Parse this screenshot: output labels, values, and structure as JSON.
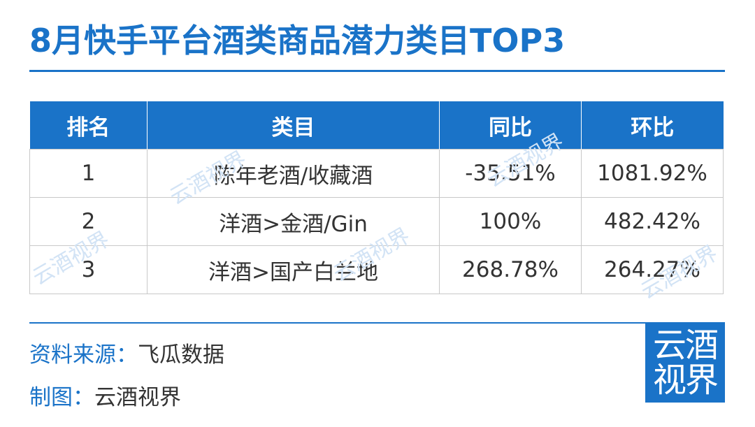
{
  "title": "8月快手平台酒类商品潜力类目TOP3",
  "table": {
    "headers": [
      "排名",
      "类目",
      "同比",
      "环比"
    ],
    "rows": [
      {
        "rank": "1",
        "category": "陈年老酒/收藏酒",
        "yoy": "-35.51%",
        "mom": "1081.92%"
      },
      {
        "rank": "2",
        "category": "洋酒>金酒/Gin",
        "yoy": "100%",
        "mom": "482.42%"
      },
      {
        "rank": "3",
        "category": "洋酒>国产白兰地",
        "yoy": "268.78%",
        "mom": "264.27%"
      }
    ]
  },
  "watermark": "云酒视界",
  "footer": {
    "source_label": "资料来源：",
    "source_value": "飞瓜数据",
    "made_label": "制图：",
    "made_value": "云酒视界"
  },
  "logo": {
    "line1": "云酒",
    "line2": "视界"
  },
  "colors": {
    "accent": "#1a73c8",
    "text": "#333333",
    "border": "#c8c8c8"
  }
}
